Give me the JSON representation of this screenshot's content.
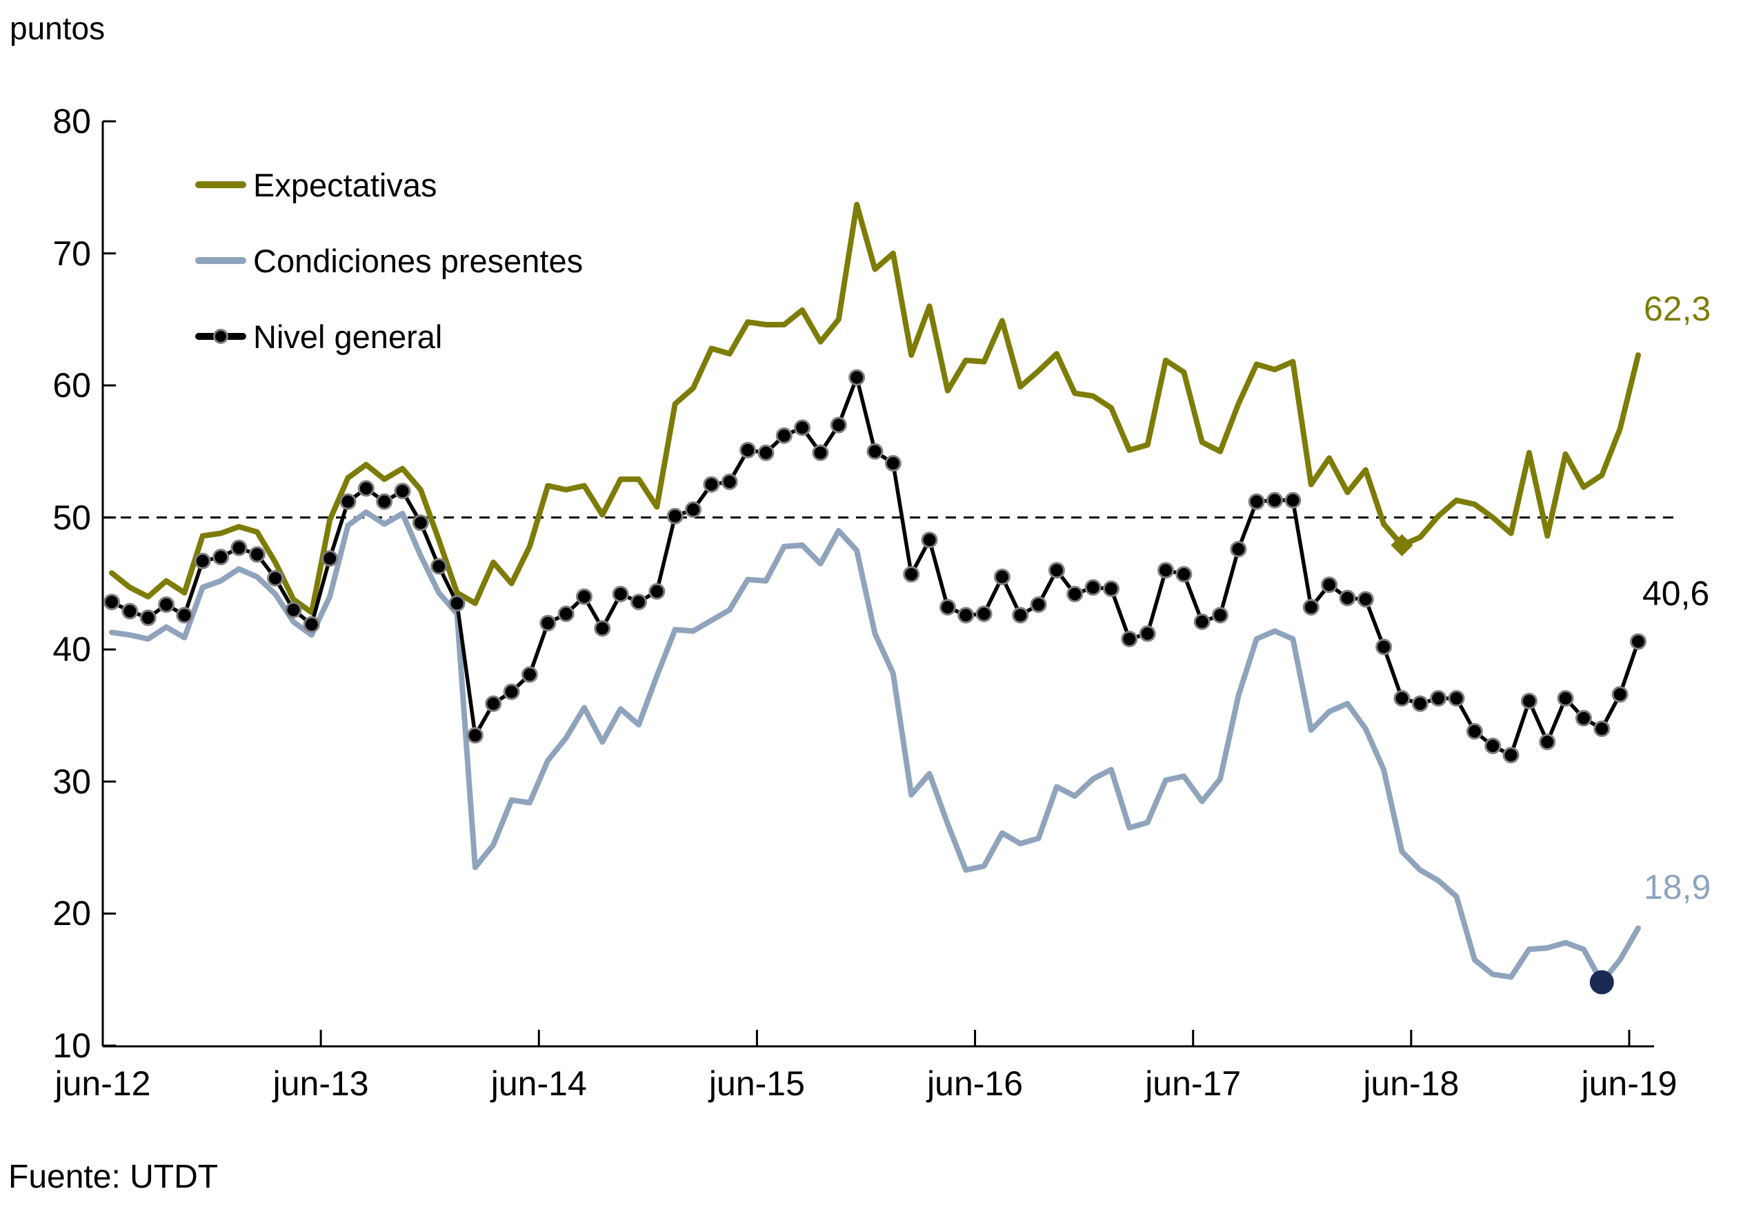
{
  "page": {
    "unit_label": "puntos",
    "source": "Fuente: UTDT"
  },
  "chart_data": {
    "type": "line",
    "title": "",
    "ylabel": "puntos",
    "xlabel": "",
    "ylim": [
      10,
      80
    ],
    "yticks": [
      80,
      70,
      60,
      50,
      40,
      30,
      20,
      10
    ],
    "grid": false,
    "legend_position": "top-left",
    "reference_line": {
      "value": 50,
      "style": "dashed",
      "color": "#000000"
    },
    "x_tick_labels": [
      "jun-12",
      "jun-13",
      "jun-14",
      "jun-15",
      "jun-16",
      "jun-17",
      "jun-18",
      "jun-19"
    ],
    "categories": [
      "jun-12",
      "jul-12",
      "ago-12",
      "sep-12",
      "oct-12",
      "nov-12",
      "dic-12",
      "ene-13",
      "feb-13",
      "mar-13",
      "abr-13",
      "may-13",
      "jun-13",
      "jul-13",
      "ago-13",
      "sep-13",
      "oct-13",
      "nov-13",
      "dic-13",
      "ene-14",
      "feb-14",
      "mar-14",
      "abr-14",
      "may-14",
      "jun-14",
      "jul-14",
      "ago-14",
      "sep-14",
      "oct-14",
      "nov-14",
      "dic-14",
      "ene-15",
      "feb-15",
      "mar-15",
      "abr-15",
      "may-15",
      "jun-15",
      "jul-15",
      "ago-15",
      "sep-15",
      "oct-15",
      "nov-15",
      "dic-15",
      "ene-16",
      "feb-16",
      "mar-16",
      "abr-16",
      "may-16",
      "jun-16",
      "jul-16",
      "ago-16",
      "sep-16",
      "oct-16",
      "nov-16",
      "dic-16",
      "ene-17",
      "feb-17",
      "mar-17",
      "abr-17",
      "may-17",
      "jun-17",
      "jul-17",
      "ago-17",
      "sep-17",
      "oct-17",
      "nov-17",
      "dic-17",
      "ene-18",
      "feb-18",
      "mar-18",
      "abr-18",
      "may-18",
      "jun-18",
      "jul-18",
      "ago-18",
      "sep-18",
      "oct-18",
      "nov-18",
      "dic-18",
      "ene-19",
      "feb-19",
      "mar-19",
      "abr-19",
      "may-19",
      "jun-19"
    ],
    "series": [
      {
        "name": "Expectativas",
        "color": "#7D7C07",
        "line_width": 8,
        "end_label": "62,3",
        "special_marker": {
          "index": 71,
          "type": "diamond",
          "color": "#7D7C07"
        },
        "values": [
          45.8,
          44.7,
          44.0,
          45.2,
          44.3,
          48.6,
          48.8,
          49.3,
          48.9,
          46.6,
          43.8,
          42.8,
          49.8,
          53.0,
          54.0,
          52.9,
          53.7,
          52.1,
          48.3,
          44.3,
          43.5,
          46.6,
          45.0,
          47.8,
          52.4,
          52.1,
          52.4,
          50.2,
          52.9,
          52.9,
          50.8,
          58.6,
          59.8,
          62.8,
          62.4,
          64.8,
          64.6,
          64.6,
          65.7,
          63.3,
          65.0,
          73.7,
          68.8,
          70.0,
          62.3,
          66.0,
          59.6,
          61.9,
          61.8,
          64.9,
          59.9,
          61.1,
          62.4,
          59.4,
          59.2,
          58.3,
          55.1,
          55.5,
          61.9,
          61.0,
          55.7,
          55.0,
          58.6,
          61.6,
          61.2,
          61.8,
          52.5,
          54.5,
          51.9,
          53.6,
          49.5,
          47.9,
          48.5,
          50.1,
          51.3,
          51.0,
          50.0,
          48.8,
          54.9,
          48.6,
          54.8,
          52.3,
          53.2,
          56.7,
          62.3
        ]
      },
      {
        "name": "Condiciones presentes",
        "color": "#8FA3BC",
        "line_width": 8,
        "end_label": "18,9",
        "special_marker": {
          "index": 82,
          "type": "circle",
          "color": "#182A54"
        },
        "values": [
          41.3,
          41.1,
          40.8,
          41.7,
          40.9,
          44.7,
          45.2,
          46.1,
          45.5,
          44.2,
          42.1,
          41.1,
          44.0,
          49.4,
          50.4,
          49.5,
          50.3,
          47.1,
          44.3,
          42.7,
          23.5,
          25.2,
          28.6,
          28.4,
          31.6,
          33.3,
          35.6,
          33.0,
          35.5,
          34.3,
          38.0,
          41.5,
          41.4,
          42.2,
          43.0,
          45.3,
          45.2,
          47.8,
          47.9,
          46.5,
          49.0,
          47.5,
          41.2,
          38.2,
          29.0,
          30.6,
          26.8,
          23.3,
          23.6,
          26.1,
          25.3,
          25.7,
          29.6,
          28.9,
          30.2,
          30.9,
          26.5,
          26.9,
          30.1,
          30.4,
          28.5,
          30.2,
          36.5,
          40.8,
          41.4,
          40.8,
          33.9,
          35.3,
          35.9,
          34.0,
          30.9,
          24.7,
          23.3,
          22.5,
          21.3,
          16.5,
          15.4,
          15.2,
          17.3,
          17.4,
          17.8,
          17.3,
          14.8,
          16.5,
          18.9
        ]
      },
      {
        "name": "Nivel general",
        "color": "#000000",
        "line_width": 5.5,
        "end_label": "40,6",
        "point_marker": {
          "shape": "circle",
          "fill": "#000000",
          "ring": "#7f7f7f",
          "radius": 10.5
        },
        "values": [
          43.6,
          42.9,
          42.4,
          43.4,
          42.6,
          46.7,
          47.0,
          47.7,
          47.2,
          45.4,
          43.0,
          41.9,
          46.9,
          51.2,
          52.2,
          51.2,
          52.0,
          49.6,
          46.3,
          43.5,
          33.5,
          35.9,
          36.8,
          38.1,
          42.0,
          42.7,
          44.0,
          41.6,
          44.2,
          43.6,
          44.4,
          50.1,
          50.6,
          52.5,
          52.7,
          55.1,
          54.9,
          56.2,
          56.8,
          54.9,
          57.0,
          60.6,
          55.0,
          54.1,
          45.7,
          48.3,
          43.2,
          42.6,
          42.7,
          45.5,
          42.6,
          43.4,
          46.0,
          44.2,
          44.7,
          44.6,
          40.8,
          41.2,
          46.0,
          45.7,
          42.1,
          42.6,
          47.6,
          51.2,
          51.3,
          51.3,
          43.2,
          44.9,
          43.9,
          43.8,
          40.2,
          36.3,
          35.9,
          36.3,
          36.3,
          33.8,
          32.7,
          32.0,
          36.1,
          33.0,
          36.3,
          34.8,
          34.0,
          36.6,
          40.6
        ]
      }
    ]
  }
}
